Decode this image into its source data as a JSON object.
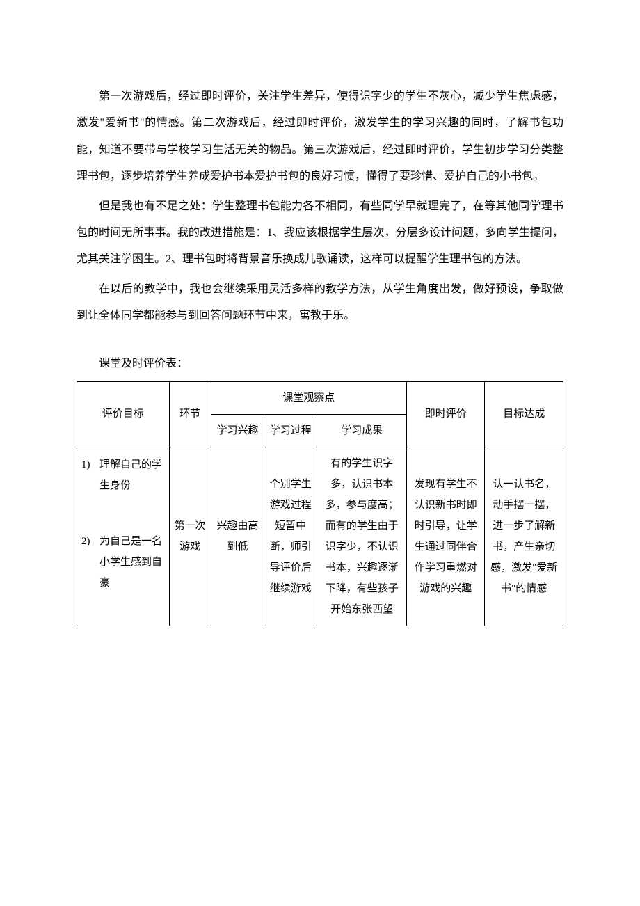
{
  "paragraphs": {
    "p1": "第一次游戏后，经过即时评价，关注学生差异，使得识字少的学生不灰心，减少学生焦虑感，激发\"爱新书\"的情感。第二次游戏后，经过即时评价，激发学生的学习兴趣的同时，了解书包功能，知道不要带与学校学习生活无关的物品。第三次游戏后，经过即时评价，学生初步学习分类整理书包，逐步培养学生养成爱护书本爱护书包的良好习惯，懂得了要珍惜、爱护自己的小书包。",
    "p2": "但是我也有不足之处：学生整理书包能力各不相同，有些同学早就理完了，在等其他同学理书包的时间无所事事。我的改进措施是：1、我应该根据学生层次，分层多设计问题，多向学生提问，尤其关注学困生。2、理书包时将背景音乐换成儿歌诵读，这样可以提醒学生理书包的方法。",
    "p3": "在以后的教学中，我也会继续采用灵活多样的教学方法，从学生角度出发，做好预设，争取做到让全体同学都能参与到回答问题环节中来，寓教于乐。"
  },
  "table": {
    "caption": "课堂及时评价表：",
    "headers": {
      "goals": "评价目标",
      "phase": "环节",
      "observations": "课堂观察点",
      "interest": "学习兴趣",
      "process": "学习过程",
      "result": "学习成果",
      "immediate_eval": "即时评价",
      "achievement": "目标达成"
    },
    "row1": {
      "goal1_num": "1)",
      "goal1_text": "理解自己的学生身份",
      "goal2_num": "2)",
      "goal2_text": "为自己是一名小学生感到自豪",
      "phase": "第一次游戏",
      "interest": "兴趣由高到低",
      "process": "个别学生游戏过程短暂中断，师引导评价后继续游戏",
      "result": "有的学生识字多，认识书本多，参与度高；而有的学生由于识字少，不认识书本，兴趣逐渐下降，有些孩子开始东张西望",
      "immediate_eval": "发现有学生不认识新书时即时引导，让学生通过同伴合作学习重燃对游戏的兴趣",
      "achievement": "认一认书名，动手摆一摆，进一步了解新书，产生亲切感，激发\"爱新书\"的情感"
    }
  },
  "colors": {
    "text": "#000000",
    "background": "#ffffff",
    "border": "#000000"
  },
  "typography": {
    "body_fontsize": 16,
    "table_fontsize": 15,
    "line_height": 2.4,
    "font_family": "SimSun"
  }
}
